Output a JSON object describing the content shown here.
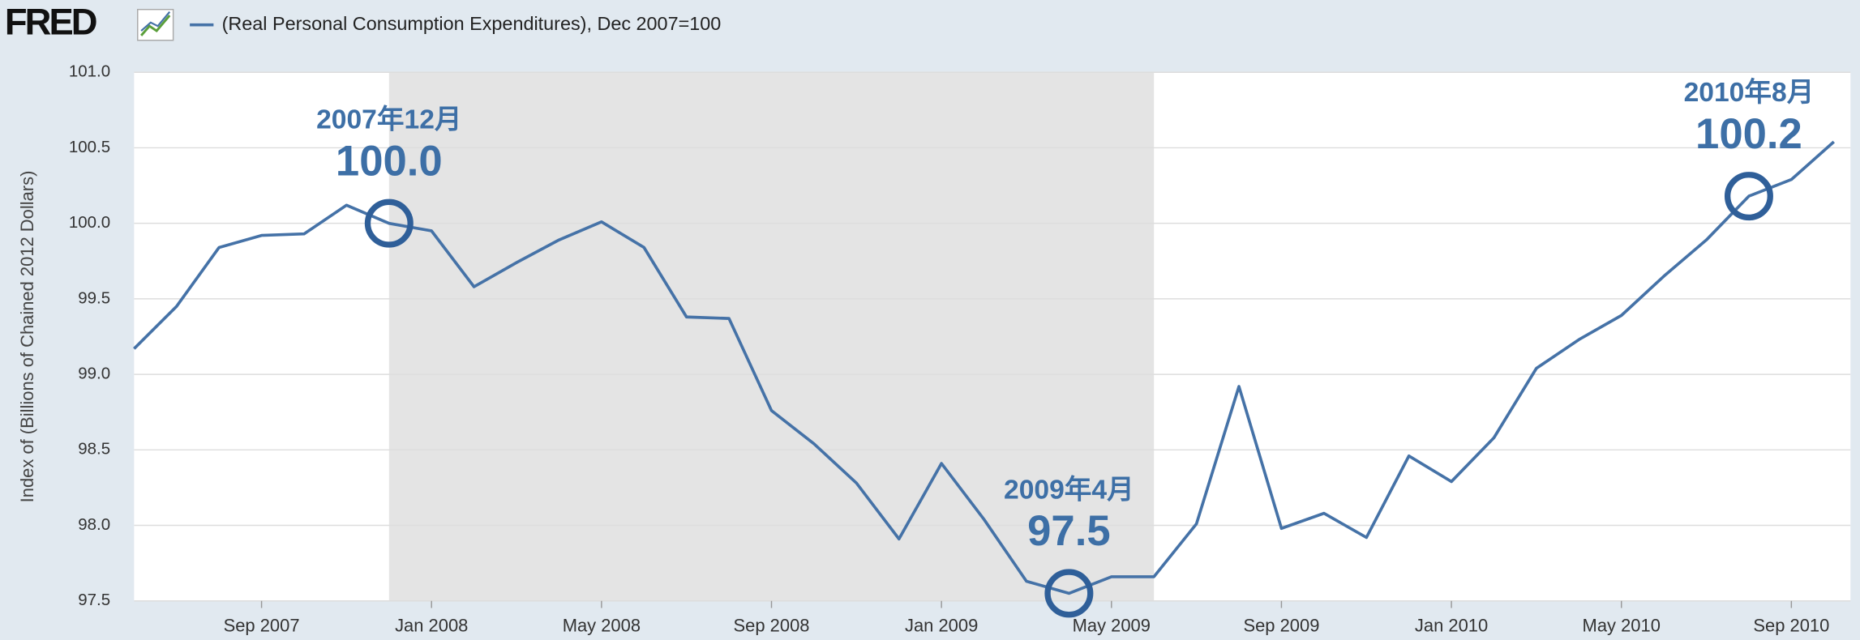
{
  "logo": "FRED",
  "chart_data": {
    "type": "line",
    "y_label": "Index of (Billions of Chained 2012 Dollars)",
    "x": [
      "2007-06",
      "2007-07",
      "2007-08",
      "2007-09",
      "2007-10",
      "2007-11",
      "2007-12",
      "2008-01",
      "2008-02",
      "2008-03",
      "2008-04",
      "2008-05",
      "2008-06",
      "2008-07",
      "2008-08",
      "2008-09",
      "2008-10",
      "2008-11",
      "2008-12",
      "2009-01",
      "2009-02",
      "2009-03",
      "2009-04",
      "2009-05",
      "2009-06",
      "2009-07",
      "2009-08",
      "2009-09",
      "2009-10",
      "2009-11",
      "2009-12",
      "2010-01",
      "2010-02",
      "2010-03",
      "2010-04",
      "2010-05",
      "2010-06",
      "2010-07",
      "2010-08",
      "2010-09",
      "2010-10"
    ],
    "series": [
      {
        "name": "(Real Personal Consumption Expenditures), Dec 2007=100",
        "color": "#4572a7",
        "values": [
          99.17,
          99.45,
          99.84,
          99.92,
          99.93,
          100.12,
          100.0,
          99.95,
          99.58,
          99.74,
          99.89,
          100.01,
          99.84,
          99.38,
          99.37,
          98.76,
          98.54,
          98.28,
          97.91,
          98.41,
          98.04,
          97.63,
          97.55,
          97.66,
          97.66,
          98.01,
          98.92,
          97.98,
          98.08,
          97.92,
          98.46,
          98.29,
          98.58,
          99.04,
          99.23,
          99.39,
          99.65,
          99.89,
          100.18,
          100.29,
          100.54
        ]
      }
    ],
    "xlim": [
      "2007-06",
      "2010-10"
    ],
    "xticks": [
      {
        "value": "2007-09",
        "label": "Sep 2007"
      },
      {
        "value": "2008-01",
        "label": "Jan 2008"
      },
      {
        "value": "2008-05",
        "label": "May 2008"
      },
      {
        "value": "2008-09",
        "label": "Sep 2008"
      },
      {
        "value": "2009-01",
        "label": "Jan 2009"
      },
      {
        "value": "2009-05",
        "label": "May 2009"
      },
      {
        "value": "2009-09",
        "label": "Sep 2009"
      },
      {
        "value": "2010-01",
        "label": "Jan 2010"
      },
      {
        "value": "2010-05",
        "label": "May 2010"
      },
      {
        "value": "2010-09",
        "label": "Sep 2010"
      }
    ],
    "ylim": [
      97.5,
      101.0
    ],
    "yticks": [
      {
        "value": 97.5,
        "label": "97.5"
      },
      {
        "value": 98,
        "label": "98.0"
      },
      {
        "value": 98.5,
        "label": "98.5"
      },
      {
        "value": 99,
        "label": "99.0"
      },
      {
        "value": 99.5,
        "label": "99.5"
      },
      {
        "value": 100,
        "label": "100.0"
      },
      {
        "value": 100.5,
        "label": "100.5"
      },
      {
        "value": 101,
        "label": "101.0"
      }
    ],
    "grid": true,
    "recession": [
      "2007-12",
      "2009-06"
    ],
    "annotations": [
      {
        "x": "2007-12",
        "date_label": "2007年12月",
        "text": "100.0"
      },
      {
        "x": "2009-04",
        "date_label": "2009年4月",
        "text": "97.5"
      },
      {
        "x": "2010-08",
        "date_label": "2010年8月",
        "text": "100.2"
      }
    ]
  }
}
